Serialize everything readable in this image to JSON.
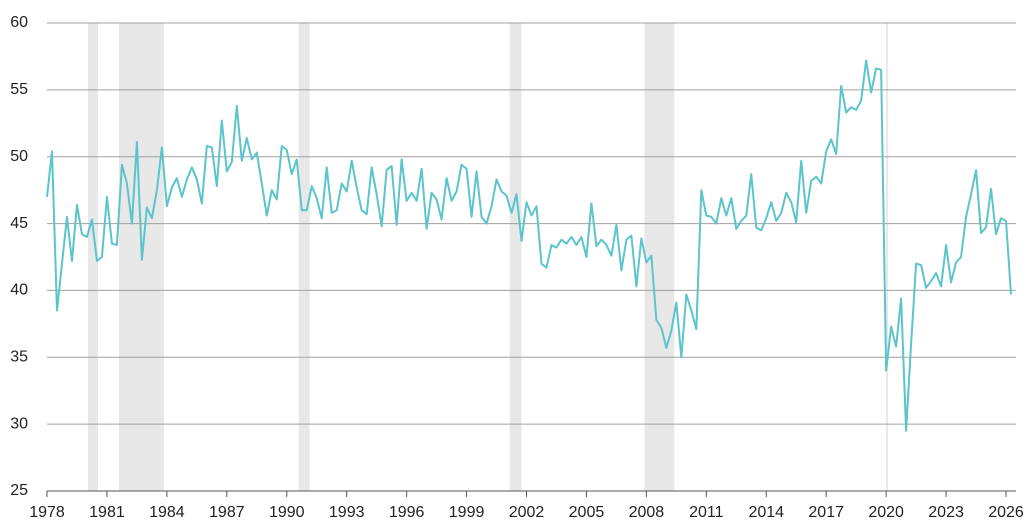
{
  "chart_data": {
    "type": "line",
    "x": [
      1978,
      1978.25,
      1978.5,
      1978.75,
      1979,
      1979.25,
      1979.5,
      1979.75,
      1980,
      1980.25,
      1980.5,
      1980.75,
      1981,
      1981.25,
      1981.5,
      1981.75,
      1982,
      1982.25,
      1982.5,
      1982.75,
      1983,
      1983.25,
      1983.5,
      1983.75,
      1984,
      1984.25,
      1984.5,
      1984.75,
      1985,
      1985.25,
      1985.5,
      1985.75,
      1986,
      1986.25,
      1986.5,
      1986.75,
      1987,
      1987.25,
      1987.5,
      1987.75,
      1988,
      1988.25,
      1988.5,
      1988.75,
      1989,
      1989.25,
      1989.5,
      1989.75,
      1990,
      1990.25,
      1990.5,
      1990.75,
      1991,
      1991.25,
      1991.5,
      1991.75,
      1992,
      1992.25,
      1992.5,
      1992.75,
      1993,
      1993.25,
      1993.5,
      1993.75,
      1994,
      1994.25,
      1994.5,
      1994.75,
      1995,
      1995.25,
      1995.5,
      1995.75,
      1996,
      1996.25,
      1996.5,
      1996.75,
      1997,
      1997.25,
      1997.5,
      1997.75,
      1998,
      1998.25,
      1998.5,
      1998.75,
      1999,
      1999.25,
      1999.5,
      1999.75,
      2000,
      2000.25,
      2000.5,
      2000.75,
      2001,
      2001.25,
      2001.5,
      2001.75,
      2002,
      2002.25,
      2002.5,
      2002.75,
      2003,
      2003.25,
      2003.5,
      2003.75,
      2004,
      2004.25,
      2004.5,
      2004.75,
      2005,
      2005.25,
      2005.5,
      2005.75,
      2006,
      2006.25,
      2006.5,
      2006.75,
      2007,
      2007.25,
      2007.5,
      2007.75,
      2008,
      2008.25,
      2008.5,
      2008.75,
      2009,
      2009.25,
      2009.5,
      2009.75,
      2010,
      2010.25,
      2010.5,
      2010.75,
      2011,
      2011.25,
      2011.5,
      2011.75,
      2012,
      2012.25,
      2012.5,
      2012.75,
      2013,
      2013.25,
      2013.5,
      2013.75,
      2014,
      2014.25,
      2014.5,
      2014.75,
      2015,
      2015.25,
      2015.5,
      2015.75,
      2016,
      2016.25,
      2016.5,
      2016.75,
      2017,
      2017.25,
      2017.5,
      2017.75,
      2018,
      2018.25,
      2018.5,
      2018.75,
      2019,
      2019.25,
      2019.5,
      2019.75,
      2020,
      2020.25,
      2020.5,
      2020.75,
      2021,
      2021.25,
      2021.5,
      2021.75,
      2022,
      2022.25,
      2022.5,
      2022.75,
      2023,
      2023.25,
      2023.5,
      2023.75,
      2024,
      2024.25,
      2024.5,
      2024.75,
      2025,
      2025.25,
      2025.5,
      2025.75,
      2026,
      2026.25
    ],
    "series": [
      {
        "color": "#5bc4cc",
        "values": [
          47,
          50.4,
          38.5,
          42,
          45.5,
          42.2,
          46.4,
          44.2,
          44,
          45.3,
          42.2,
          42.5,
          47,
          43.5,
          43.4,
          49.4,
          48,
          45,
          51.1,
          42.3,
          46.2,
          45.4,
          47.5,
          50.7,
          46.3,
          47.7,
          48.4,
          47,
          48.3,
          49.2,
          48.3,
          46.5,
          50.8,
          50.7,
          47.8,
          52.7,
          48.9,
          49.6,
          53.8,
          49.7,
          51.4,
          49.8,
          50.3,
          48,
          45.6,
          47.5,
          46.8,
          50.8,
          50.5,
          48.7,
          49.8,
          46,
          46,
          47.8,
          46.9,
          45.4,
          49.2,
          45.8,
          46,
          48,
          47.4,
          49.7,
          47.7,
          46,
          45.7,
          49.2,
          47.2,
          44.8,
          49,
          49.3,
          44.9,
          49.8,
          46.7,
          47.3,
          46.7,
          49.1,
          44.6,
          47.3,
          46.8,
          45.3,
          48.4,
          46.7,
          47.4,
          49.4,
          49.1,
          45.5,
          48.9,
          45.5,
          45,
          46.3,
          48.3,
          47.4,
          47.1,
          45.8,
          47.2,
          43.7,
          46.6,
          45.6,
          46.3,
          42,
          41.7,
          43.4,
          43.2,
          43.8,
          43.5,
          44,
          43.4,
          44,
          42.5,
          46.5,
          43.3,
          43.8,
          43.4,
          42.6,
          44.9,
          41.5,
          43.8,
          44.1,
          40.3,
          43.9,
          42.1,
          42.6,
          37.8,
          37.2,
          35.7,
          37,
          39.1,
          35,
          39.7,
          38.5,
          37.1,
          47.5,
          45.6,
          45.5,
          45,
          46.9,
          45.6,
          46.9,
          44.6,
          45.2,
          45.6,
          48.7,
          44.7,
          44.5,
          45.4,
          46.6,
          45.2,
          45.8,
          47.3,
          46.6,
          45.1,
          49.7,
          45.8,
          48.2,
          48.5,
          48,
          50.4,
          51.3,
          50.2,
          55.3,
          53.3,
          53.7,
          53.5,
          54.2,
          57.2,
          54.8,
          56.6,
          56.5,
          34,
          37.3,
          35.8,
          39.4,
          29.5,
          36,
          42,
          41.9,
          40.2,
          40.7,
          41.3,
          40.3,
          43.4,
          40.6,
          42.1,
          42.5,
          45.5,
          47.2,
          49,
          44.3,
          44.7,
          47.6,
          44.2,
          45.4,
          45.2,
          39.7
        ]
      }
    ],
    "shaded_periods": [
      [
        1980.05,
        1980.55
      ],
      [
        1981.6,
        1983.85
      ],
      [
        1990.6,
        1991.15
      ],
      [
        2001.15,
        2001.75
      ],
      [
        2007.9,
        2009.4
      ],
      [
        2020,
        2020.1
      ]
    ],
    "xlim": [
      1978,
      2026.5
    ],
    "xticks": [
      1978,
      1981,
      1984,
      1987,
      1990,
      1993,
      1996,
      1999,
      2002,
      2005,
      2008,
      2011,
      2014,
      2017,
      2020,
      2023,
      2026
    ],
    "ylim": [
      25,
      60
    ],
    "yticks": [
      25,
      30,
      35,
      40,
      45,
      50,
      55,
      60
    ],
    "grid": true
  }
}
